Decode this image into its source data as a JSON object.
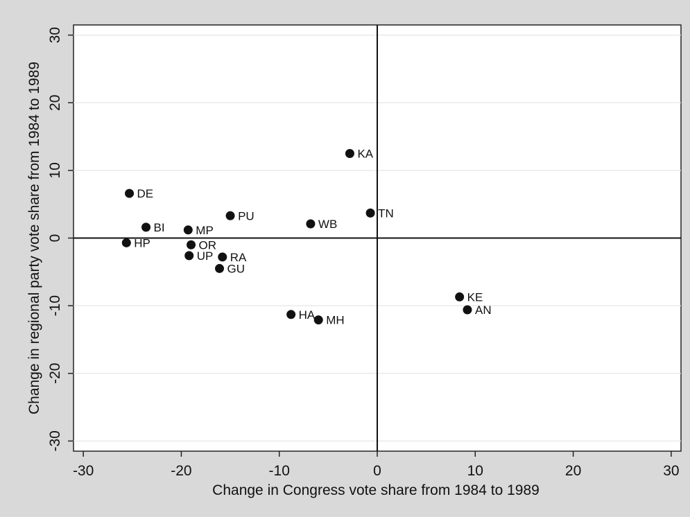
{
  "chart_data": {
    "type": "scatter",
    "title": "",
    "xlabel": "Change in Congress vote share from 1984 to 1989",
    "ylabel": "Change in regional party vote share from 1984 to 1989",
    "xlim": [
      -31,
      31
    ],
    "ylim": [
      -31.5,
      31.5
    ],
    "xticks": [
      "-30",
      "-20",
      "-10",
      "0",
      "10",
      "20",
      "30"
    ],
    "yticks": [
      "-30",
      "-20",
      "-10",
      "0",
      "10",
      "20",
      "30"
    ],
    "grid": "horizontal",
    "reference_lines": {
      "x": 0,
      "y": 0
    },
    "colors": {
      "marker": "#111111",
      "plot_background": "#ffffff",
      "figure_background": "#d9d9d9",
      "grid": "#e6e6e6"
    },
    "points": [
      {
        "label": "KA",
        "x": -2.8,
        "y": 12.5
      },
      {
        "label": "DE",
        "x": -25.3,
        "y": 6.6
      },
      {
        "label": "TN",
        "x": -0.7,
        "y": 3.7
      },
      {
        "label": "PU",
        "x": -15.0,
        "y": 3.3
      },
      {
        "label": "WB",
        "x": -6.8,
        "y": 2.1
      },
      {
        "label": "BI",
        "x": -23.6,
        "y": 1.6
      },
      {
        "label": "MP",
        "x": -19.3,
        "y": 1.2
      },
      {
        "label": "HP",
        "x": -25.6,
        "y": -0.7
      },
      {
        "label": "OR",
        "x": -19.0,
        "y": -1.0
      },
      {
        "label": "UP",
        "x": -19.2,
        "y": -2.6
      },
      {
        "label": "RA",
        "x": -15.8,
        "y": -2.8
      },
      {
        "label": "GU",
        "x": -16.1,
        "y": -4.5
      },
      {
        "label": "KE",
        "x": 8.4,
        "y": -8.7
      },
      {
        "label": "AN",
        "x": 9.2,
        "y": -10.6
      },
      {
        "label": "HA",
        "x": -8.8,
        "y": -11.3
      },
      {
        "label": "MH",
        "x": -6.0,
        "y": -12.1
      }
    ]
  }
}
